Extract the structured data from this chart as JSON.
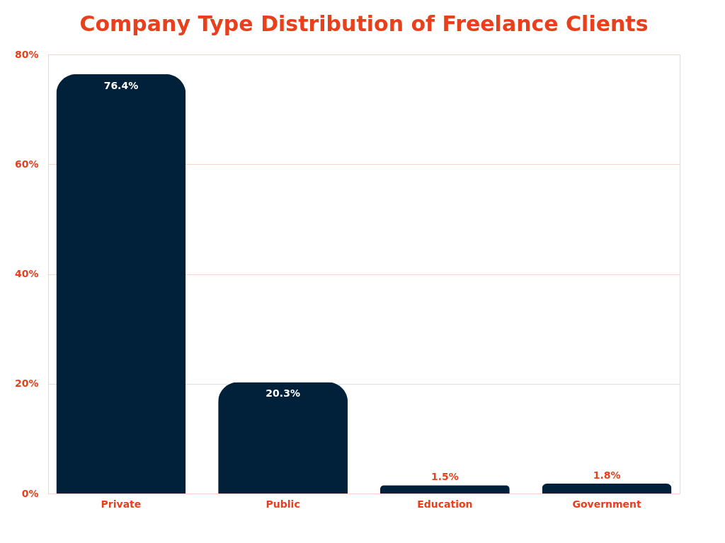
{
  "chart_data": {
    "type": "bar",
    "title": "Company Type Distribution of Freelance Clients",
    "categories": [
      "Private",
      "Public",
      "Education",
      "Government"
    ],
    "values": [
      76.4,
      20.3,
      1.5,
      1.8
    ],
    "value_labels": [
      "76.4%",
      "20.3%",
      "1.5%",
      "1.8%"
    ],
    "color": "#01203a",
    "ylim": [
      0,
      80
    ],
    "yticks": [
      {
        "value": 0,
        "label": "0%"
      },
      {
        "value": 20,
        "label": "20%"
      },
      {
        "value": 40,
        "label": "40%"
      },
      {
        "value": 60,
        "label": "60%"
      },
      {
        "value": 80,
        "label": "80%"
      }
    ],
    "grid": "y"
  }
}
